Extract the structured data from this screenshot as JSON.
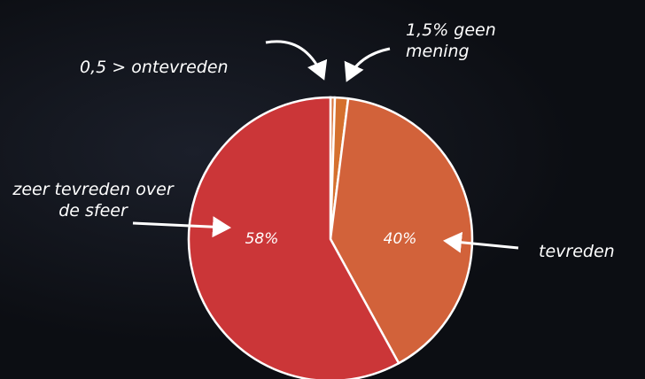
{
  "chart_data": {
    "type": "pie",
    "categories": [
      "0,5 > ontevreden",
      "1,5% geen mening",
      "tevreden",
      "zeer tevreden over de sfeer"
    ],
    "values": [
      0.5,
      1.5,
      40,
      58
    ],
    "value_labels": [
      null,
      null,
      "40%",
      "58%"
    ],
    "colors": [
      "#d9763c",
      "#d5702e",
      "#d2623a",
      "#cb3638"
    ]
  }
}
